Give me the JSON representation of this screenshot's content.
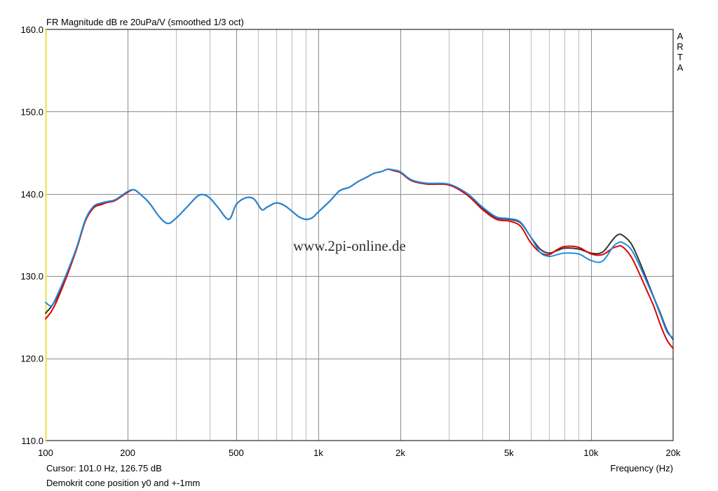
{
  "chart_data": {
    "type": "line",
    "title": "FR Magnitude dB re 20uPa/V (smoothed 1/3 oct)",
    "xlabel": "Frequency (Hz)",
    "ylabel": "",
    "xscale": "log",
    "xlim": [
      100,
      20000
    ],
    "ylim": [
      110,
      160
    ],
    "grid": true,
    "y_ticks": [
      "110.0",
      "120.0",
      "130.0",
      "140.0",
      "150.0",
      "160.0"
    ],
    "y_tick_values": [
      110,
      120,
      130,
      140,
      150,
      160
    ],
    "x_ticks": [
      "100",
      "200",
      "500",
      "1k",
      "2k",
      "5k",
      "10k",
      "20k"
    ],
    "x_tick_values": [
      100,
      200,
      500,
      1000,
      2000,
      5000,
      10000,
      20000
    ],
    "side_label": "ARTA",
    "watermark": "www.2pi-online.de",
    "cursor_text": "Cursor: 101.0 Hz, 126.75 dB",
    "caption": "Demokrit cone position y0 and +-1mm",
    "series": [
      {
        "color": "#333333",
        "x": [
          100,
          105,
          110,
          120,
          130,
          140,
          150,
          160,
          170,
          180,
          200,
          210,
          220,
          240,
          260,
          280,
          300,
          330,
          360,
          380,
          400,
          430,
          470,
          500,
          540,
          580,
          620,
          650,
          700,
          750,
          800,
          850,
          900,
          950,
          1000,
          1100,
          1200,
          1300,
          1400,
          1500,
          1600,
          1700,
          1800,
          1900,
          2000,
          2200,
          2500,
          3000,
          3500,
          4000,
          4500,
          5000,
          5500,
          6000,
          6500,
          7000,
          7500,
          8000,
          9000,
          10000,
          11000,
          12000,
          12500,
          13000,
          14000,
          15000,
          16000,
          17000,
          18000,
          19000,
          20000
        ],
        "values": [
          125.5,
          126.3,
          127.4,
          130.3,
          133.4,
          136.8,
          138.4,
          138.8,
          139.0,
          139.2,
          140.2,
          140.5,
          140.1,
          138.9,
          137.3,
          136.4,
          137.0,
          138.4,
          139.7,
          139.9,
          139.5,
          138.3,
          136.9,
          138.7,
          139.5,
          139.4,
          138.1,
          138.4,
          138.9,
          138.6,
          137.9,
          137.2,
          136.9,
          137.1,
          137.8,
          139.1,
          140.4,
          140.8,
          141.5,
          142.0,
          142.5,
          142.7,
          143.0,
          142.8,
          142.6,
          141.6,
          141.2,
          141.1,
          140.0,
          138.3,
          137.1,
          136.9,
          136.5,
          134.8,
          133.3,
          132.8,
          133.1,
          133.4,
          133.3,
          132.8,
          132.9,
          134.4,
          135.0,
          135.0,
          134.0,
          131.9,
          129.6,
          127.4,
          125.4,
          123.4,
          122.3
        ]
      },
      {
        "color": "#dd0000",
        "x": [
          100,
          105,
          110,
          120,
          130,
          140,
          150,
          160,
          170,
          180,
          200,
          210,
          220,
          240,
          260,
          280,
          300,
          330,
          360,
          380,
          400,
          430,
          470,
          500,
          540,
          580,
          620,
          650,
          700,
          750,
          800,
          850,
          900,
          950,
          1000,
          1100,
          1200,
          1300,
          1400,
          1500,
          1600,
          1700,
          1800,
          1900,
          2000,
          2200,
          2500,
          3000,
          3500,
          4000,
          4500,
          5000,
          5500,
          6000,
          6500,
          7000,
          7500,
          8000,
          9000,
          10000,
          11000,
          12000,
          12500,
          13000,
          14000,
          15000,
          16000,
          17000,
          18000,
          19000,
          20000
        ],
        "values": [
          124.8,
          125.7,
          127.0,
          130.1,
          133.3,
          136.7,
          138.3,
          138.7,
          139.0,
          139.2,
          140.2,
          140.5,
          140.1,
          138.9,
          137.3,
          136.4,
          137.0,
          138.4,
          139.7,
          139.9,
          139.5,
          138.3,
          136.9,
          138.7,
          139.5,
          139.4,
          138.1,
          138.4,
          138.9,
          138.6,
          137.9,
          137.2,
          136.9,
          137.1,
          137.8,
          139.1,
          140.4,
          140.8,
          141.5,
          142.0,
          142.5,
          142.7,
          143.0,
          142.8,
          142.6,
          141.6,
          141.2,
          141.1,
          139.9,
          138.1,
          136.9,
          136.7,
          136.1,
          134.1,
          132.9,
          132.6,
          133.2,
          133.6,
          133.5,
          132.7,
          132.6,
          133.4,
          133.6,
          133.6,
          132.4,
          130.4,
          128.3,
          126.3,
          124.0,
          122.2,
          121.2
        ]
      },
      {
        "color": "#1f8fe0",
        "x": [
          100,
          105,
          110,
          120,
          130,
          140,
          150,
          160,
          170,
          180,
          200,
          210,
          220,
          240,
          260,
          280,
          300,
          330,
          360,
          380,
          400,
          430,
          470,
          500,
          540,
          580,
          620,
          650,
          700,
          750,
          800,
          850,
          900,
          950,
          1000,
          1100,
          1200,
          1300,
          1400,
          1500,
          1600,
          1700,
          1800,
          1900,
          2000,
          2200,
          2500,
          3000,
          3500,
          4000,
          4500,
          5000,
          5500,
          6000,
          6500,
          7000,
          7500,
          8000,
          9000,
          10000,
          11000,
          12000,
          12500,
          13000,
          14000,
          15000,
          16000,
          17000,
          18000,
          19000,
          20000
        ],
        "values": [
          126.8,
          126.4,
          127.6,
          130.5,
          133.5,
          136.9,
          138.5,
          138.9,
          139.1,
          139.3,
          140.3,
          140.5,
          140.1,
          138.9,
          137.3,
          136.4,
          137.0,
          138.4,
          139.7,
          139.9,
          139.5,
          138.3,
          136.9,
          138.7,
          139.5,
          139.4,
          138.1,
          138.4,
          138.9,
          138.6,
          137.9,
          137.2,
          136.9,
          137.1,
          137.8,
          139.1,
          140.4,
          140.8,
          141.5,
          142.0,
          142.5,
          142.7,
          143.0,
          142.9,
          142.7,
          141.7,
          141.3,
          141.2,
          140.1,
          138.4,
          137.2,
          137.0,
          136.6,
          134.8,
          132.9,
          132.4,
          132.6,
          132.8,
          132.7,
          131.9,
          131.8,
          133.5,
          134.0,
          134.1,
          133.3,
          131.4,
          129.3,
          127.3,
          125.2,
          123.2,
          122.5
        ]
      }
    ]
  }
}
